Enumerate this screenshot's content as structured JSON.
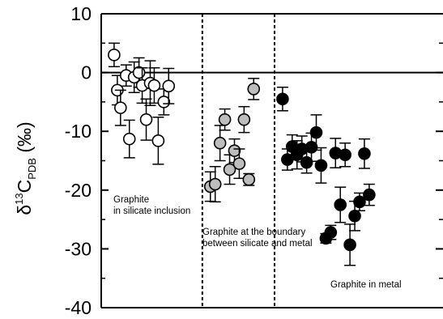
{
  "chart_data": {
    "type": "scatter",
    "title": "",
    "xlabel": "",
    "ylabel": {
      "delta": "δ",
      "sup": "13",
      "main": "C",
      "sub": "PDB",
      "unit": " (‰)"
    },
    "ylim": [
      -40,
      10
    ],
    "yticks": [
      10,
      0,
      -10,
      -20,
      -30,
      -40
    ],
    "ytick_labels": [
      "10",
      "0",
      "-10",
      "-20",
      "-30",
      "-40"
    ],
    "xlim": [
      0,
      42
    ],
    "zero_line": 0,
    "dividers": [
      12,
      21
    ],
    "groups": [
      {
        "label_lines": [
          "Graphite",
          "in silicate inclusion"
        ],
        "marker_color": "#ffffff",
        "points": [
          {
            "x": 1.0,
            "y": 3.0,
            "err": 2.0
          },
          {
            "x": 1.4,
            "y": -3.0,
            "err": 2.5
          },
          {
            "x": 1.8,
            "y": -6.0,
            "err": 3.0
          },
          {
            "x": 2.5,
            "y": -0.5,
            "err": 1.8
          },
          {
            "x": 2.9,
            "y": -11.3,
            "err": 3.2
          },
          {
            "x": 3.5,
            "y": -0.8,
            "err": 2.6
          },
          {
            "x": 4.1,
            "y": 0.0,
            "err": 2.5
          },
          {
            "x": 4.5,
            "y": -2.2,
            "err": 3.0
          },
          {
            "x": 5.0,
            "y": -8.0,
            "err": 3.5
          },
          {
            "x": 5.5,
            "y": -1.8,
            "err": 3.8
          },
          {
            "x": 6.0,
            "y": -2.2,
            "err": 3.0
          },
          {
            "x": 6.5,
            "y": -11.6,
            "err": 4.0
          },
          {
            "x": 7.2,
            "y": -5.0,
            "err": 2.2
          },
          {
            "x": 7.8,
            "y": -2.3,
            "err": 3.0
          }
        ]
      },
      {
        "label_lines": [
          "Graphite at the boundary",
          "between silicate and metal"
        ],
        "marker_color": "#bdbdbd",
        "points": [
          {
            "x": 13.0,
            "y": -19.4,
            "err": 2.5
          },
          {
            "x": 13.6,
            "y": -19.0,
            "err": 3.0
          },
          {
            "x": 14.2,
            "y": -12.0,
            "err": 3.0
          },
          {
            "x": 14.8,
            "y": -8.0,
            "err": 1.8
          },
          {
            "x": 15.4,
            "y": -16.5,
            "err": 2.5
          },
          {
            "x": 16.0,
            "y": -13.3,
            "err": 2.0
          },
          {
            "x": 16.6,
            "y": -15.5,
            "err": 2.5
          },
          {
            "x": 17.2,
            "y": -8.0,
            "err": 2.2
          },
          {
            "x": 17.8,
            "y": -18.2,
            "err": 1.0
          },
          {
            "x": 18.4,
            "y": -2.8,
            "err": 1.8
          }
        ]
      },
      {
        "label_lines": [
          "Graphite in metal"
        ],
        "marker_color": "#000000",
        "points": [
          {
            "x": 22.0,
            "y": -4.5,
            "err": 2.0
          },
          {
            "x": 22.6,
            "y": -14.8,
            "err": 1.8
          },
          {
            "x": 23.2,
            "y": -12.6,
            "err": 2.0
          },
          {
            "x": 23.8,
            "y": -14.0,
            "err": 2.4
          },
          {
            "x": 24.4,
            "y": -13.0,
            "err": 2.2
          },
          {
            "x": 25.0,
            "y": -15.3,
            "err": 1.8
          },
          {
            "x": 25.6,
            "y": -12.7,
            "err": 2.4
          },
          {
            "x": 26.2,
            "y": -10.2,
            "err": 3.0
          },
          {
            "x": 26.8,
            "y": -15.8,
            "err": 3.0
          },
          {
            "x": 27.4,
            "y": -28.2,
            "err": 0.8
          },
          {
            "x": 28.0,
            "y": -27.2,
            "err": 1.2
          },
          {
            "x": 28.6,
            "y": -13.7,
            "err": 2.5
          },
          {
            "x": 29.2,
            "y": -22.5,
            "err": 3.0
          },
          {
            "x": 29.8,
            "y": -14.0,
            "err": 2.0
          },
          {
            "x": 30.4,
            "y": -29.3,
            "err": 3.5
          },
          {
            "x": 31.0,
            "y": -24.4,
            "err": 2.5
          },
          {
            "x": 31.6,
            "y": -22.0,
            "err": 1.5
          },
          {
            "x": 32.2,
            "y": -13.8,
            "err": 2.5
          },
          {
            "x": 32.8,
            "y": -20.8,
            "err": 1.8
          }
        ]
      }
    ]
  }
}
